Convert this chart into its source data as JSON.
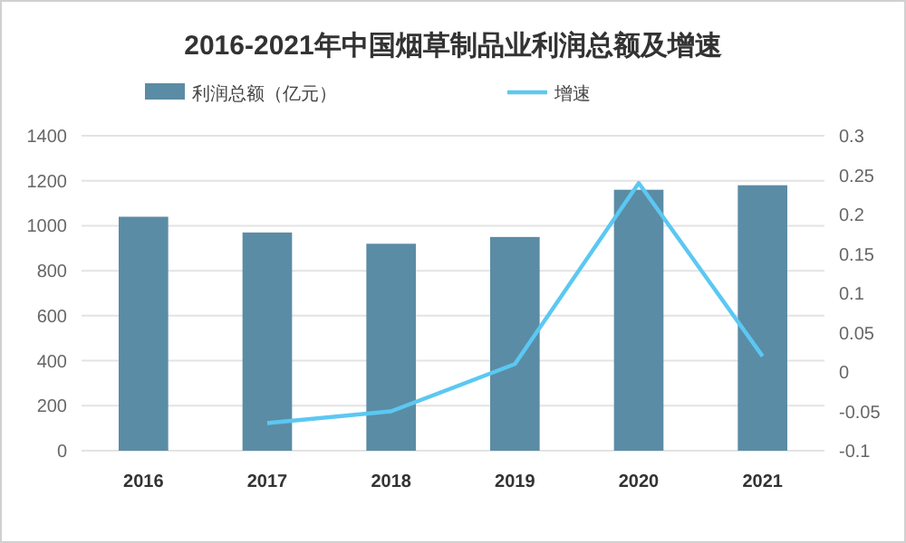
{
  "chart_data": {
    "type": "bar",
    "title": "2016-2021年中国烟草制品业利润总额及增速",
    "categories": [
      "2016",
      "2017",
      "2018",
      "2019",
      "2020",
      "2021"
    ],
    "series": [
      {
        "name": "利润总额（亿元）",
        "color": "#5b8ca5",
        "values": [
          1040,
          970,
          920,
          950,
          1160,
          1180
        ]
      },
      {
        "name": "增速",
        "type": "line",
        "axis": "y2",
        "color": "#5bc8f2",
        "values": [
          null,
          -0.065,
          -0.05,
          0.01,
          0.24,
          0.02
        ]
      }
    ],
    "ylim": [
      0,
      1400
    ],
    "yticks": [
      0,
      200,
      400,
      600,
      800,
      1000,
      1200,
      1400
    ],
    "y2lim": [
      -0.1,
      0.3
    ],
    "y2ticks": [
      -0.1,
      -0.05,
      0,
      0.05,
      0.1,
      0.15,
      0.2,
      0.25,
      0.3
    ],
    "grid": "y",
    "legend": "top",
    "marker": "none"
  }
}
